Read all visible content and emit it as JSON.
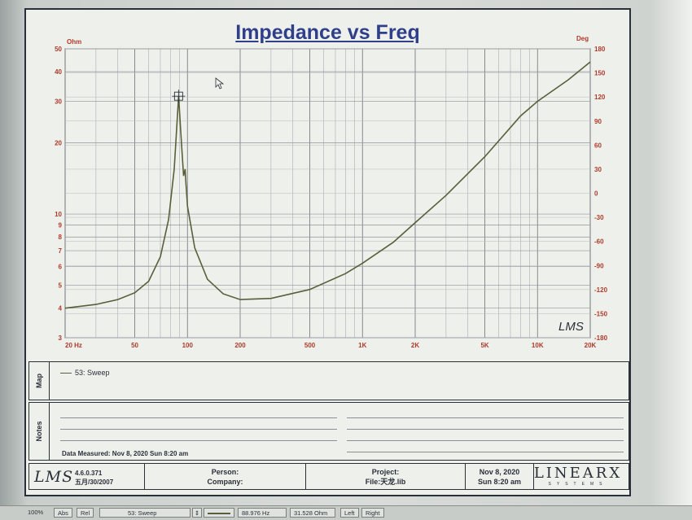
{
  "title": "Impedance vs Freq",
  "chart_data": {
    "type": "line",
    "title": "Impedance vs Freq",
    "x_scale": "log",
    "xlim": [
      20,
      20000
    ],
    "left_axis": {
      "unit": "Ohm",
      "scale": "log",
      "range": [
        3,
        50
      ],
      "ticks": [
        {
          "v": 3,
          "t": "3"
        },
        {
          "v": 4,
          "t": "4"
        },
        {
          "v": 5,
          "t": "5"
        },
        {
          "v": 6,
          "t": "6"
        },
        {
          "v": 7,
          "t": "7"
        },
        {
          "v": 8,
          "t": "8"
        },
        {
          "v": 9,
          "t": "9"
        },
        {
          "v": 10,
          "t": "10"
        },
        {
          "v": 20,
          "t": "20"
        },
        {
          "v": 30,
          "t": "30"
        },
        {
          "v": 40,
          "t": "40"
        },
        {
          "v": 50,
          "t": "50"
        }
      ]
    },
    "right_axis": {
      "unit": "Deg",
      "range": [
        -180,
        180
      ],
      "ticks": [
        {
          "v": -180,
          "t": "-180"
        },
        {
          "v": -150,
          "t": "-150"
        },
        {
          "v": -120,
          "t": "-120"
        },
        {
          "v": -90,
          "t": "-90"
        },
        {
          "v": -60,
          "t": "-60"
        },
        {
          "v": -30,
          "t": "-30"
        },
        {
          "v": 0,
          "t": "0"
        },
        {
          "v": 30,
          "t": "30"
        },
        {
          "v": 60,
          "t": "60"
        },
        {
          "v": 90,
          "t": "90"
        },
        {
          "v": 120,
          "t": "120"
        },
        {
          "v": 150,
          "t": "150"
        },
        {
          "v": 180,
          "t": "180"
        }
      ]
    },
    "x_ticks": [
      {
        "v": 20,
        "t": "20 Hz"
      },
      {
        "v": 50,
        "t": "50"
      },
      {
        "v": 100,
        "t": "100"
      },
      {
        "v": 200,
        "t": "200"
      },
      {
        "v": 500,
        "t": "500"
      },
      {
        "v": 1000,
        "t": "1K"
      },
      {
        "v": 2000,
        "t": "2K"
      },
      {
        "v": 5000,
        "t": "5K"
      },
      {
        "v": 10000,
        "t": "10K"
      },
      {
        "v": 20000,
        "t": "20K"
      }
    ],
    "grid": true,
    "series": [
      {
        "name": "53: Sweep",
        "color": "#5a5f3a",
        "x": [
          20,
          30,
          40,
          50,
          60,
          70,
          78,
          84,
          88.976,
          92,
          95,
          97,
          98,
          100,
          110,
          130,
          160,
          200,
          300,
          500,
          800,
          1000,
          1500,
          2000,
          3000,
          5000,
          8000,
          10000,
          15000,
          20000
        ],
        "y": [
          4.0,
          4.15,
          4.35,
          4.65,
          5.2,
          6.6,
          9.5,
          15.5,
          31.528,
          21.0,
          14.5,
          15.5,
          13.5,
          10.8,
          7.2,
          5.3,
          4.6,
          4.35,
          4.4,
          4.8,
          5.6,
          6.2,
          7.6,
          9.2,
          12.0,
          17.5,
          26.0,
          30.0,
          37.0,
          44.0
        ]
      }
    ],
    "marker": {
      "x": 88.976,
      "y": 31.528
    }
  },
  "map": {
    "label": "Map",
    "legend": "53: Sweep"
  },
  "notes": {
    "label": "Notes",
    "date_measured": "Data Measured: Nov  8, 2020  Sun  8:20 am"
  },
  "footer": {
    "logo": "LMS",
    "version": "4.6.0.371",
    "version_date": "五月/30/2007",
    "person_label": "Person:",
    "company_label": "Company:",
    "project_label": "Project:",
    "file_label": "File:天龙.lib",
    "date": "Nov  8, 2020",
    "time": "Sun  8:20 am",
    "brand": "LINEARX",
    "brand_sub": "SYSTEMS"
  },
  "lms_watermark": "LMS",
  "statusbar": {
    "zoom": "100%",
    "abs": "Abs",
    "rel": "Rel",
    "curve": "53: Sweep",
    "freq_readout": "88.976  Hz",
    "value_readout": "31.528  Ohm",
    "left": "Left",
    "right": "Right"
  }
}
